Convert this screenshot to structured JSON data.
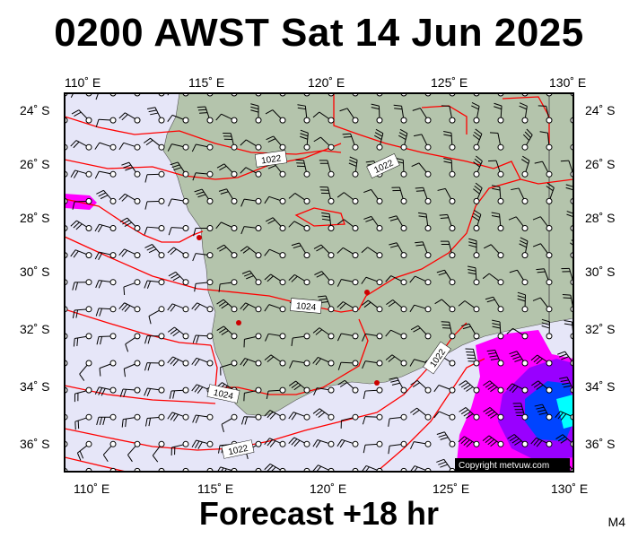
{
  "title": "0200 AWST Sat 14 Jun 2025",
  "footer": "Forecast +18 hr",
  "model_label": "M4",
  "copyright": "Copyright metvuw.com",
  "lon_labels": [
    "110˚ E",
    "115˚ E",
    "120˚ E",
    "125˚ E",
    "130˚ E"
  ],
  "lat_labels": [
    "24˚ S",
    "26˚ S",
    "28˚ S",
    "30˚ S",
    "32˚ S",
    "34˚ S",
    "36˚ S"
  ],
  "isobar_labels": [
    "1022",
    "1022",
    "1024",
    "1022",
    "1024",
    "1022"
  ],
  "colors": {
    "ocean": "#e6e6f8",
    "land": "#b4c4ac",
    "isobar": "#ff0000",
    "rain_magenta": "#ff00ff",
    "rain_purple": "#9900ff",
    "rain_blue": "#0044ff",
    "rain_cyan": "#00ffff"
  }
}
